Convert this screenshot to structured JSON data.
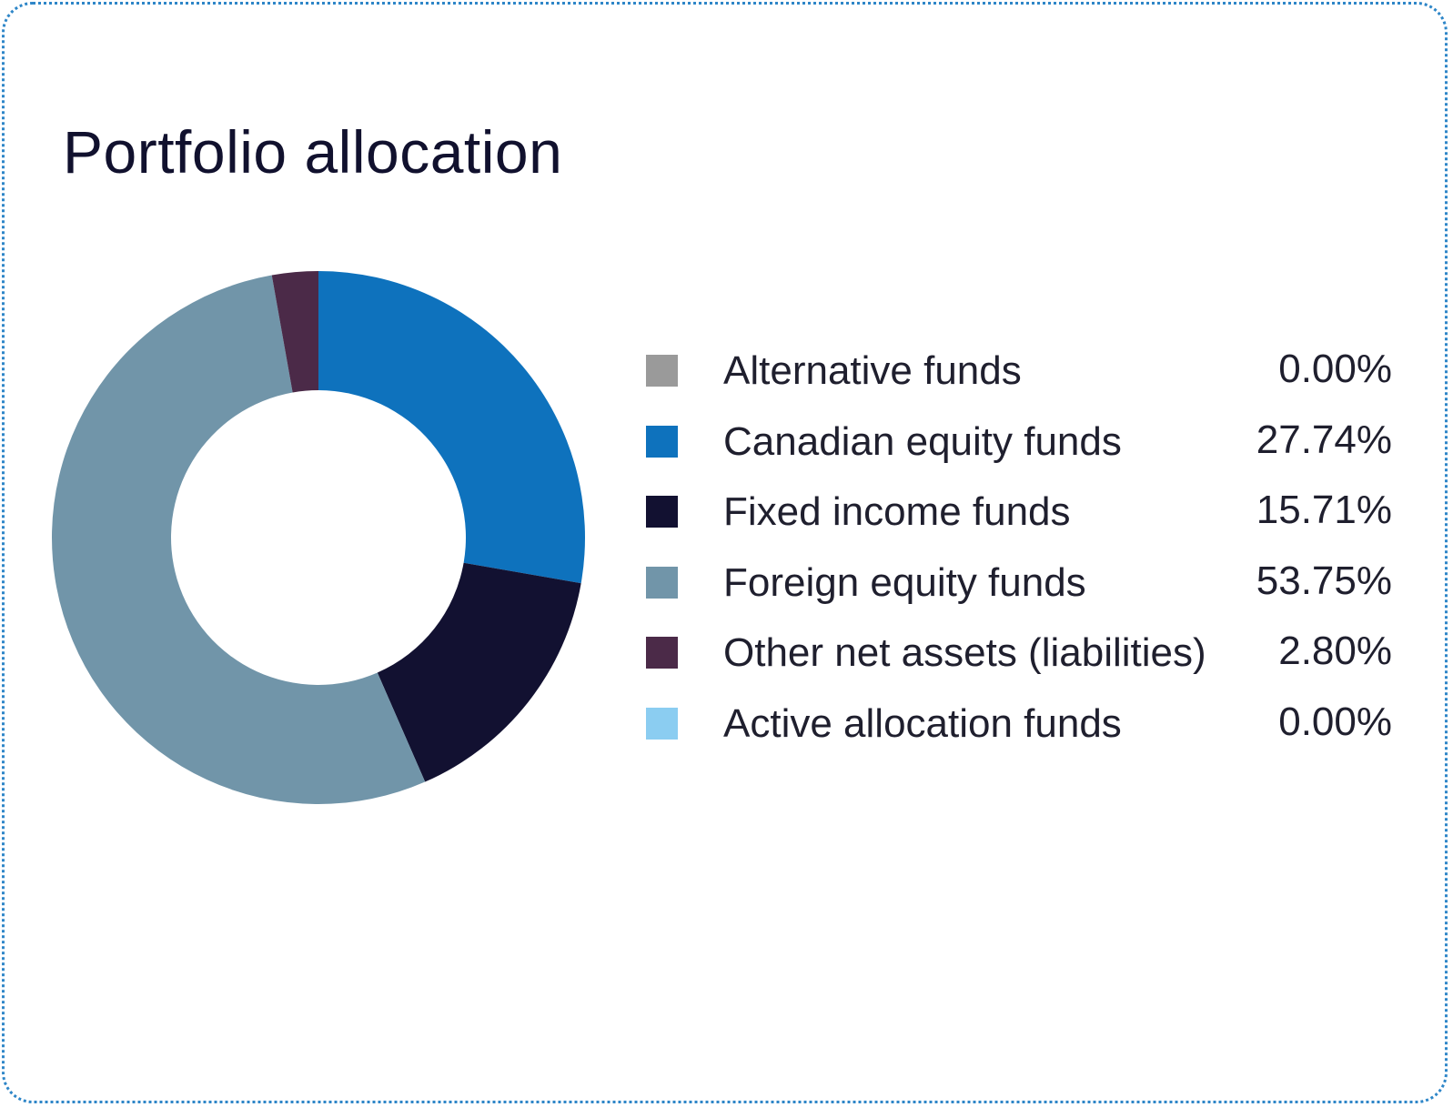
{
  "chart_data": {
    "type": "pie",
    "variant": "donut",
    "title": "Portfolio allocation",
    "start": "top, clockwise",
    "slices": [
      {
        "label": "Alternative funds",
        "value": 0.0,
        "display": "0.00%",
        "color": "#9a9a9a"
      },
      {
        "label": "Canadian equity funds",
        "value": 27.74,
        "display": "27.74%",
        "color": "#0e72bd"
      },
      {
        "label": "Fixed income funds",
        "value": 15.71,
        "display": "15.71%",
        "color": "#121131"
      },
      {
        "label": "Foreign equity funds",
        "value": 53.75,
        "display": "53.75%",
        "color": "#7195a9"
      },
      {
        "label": "Other net assets (liabilities)",
        "value": 2.8,
        "display": "2.80%",
        "color": "#4b2a48"
      },
      {
        "label": "Active allocation funds",
        "value": 0.0,
        "display": "0.00%",
        "color": "#8bcdf1"
      }
    ]
  }
}
